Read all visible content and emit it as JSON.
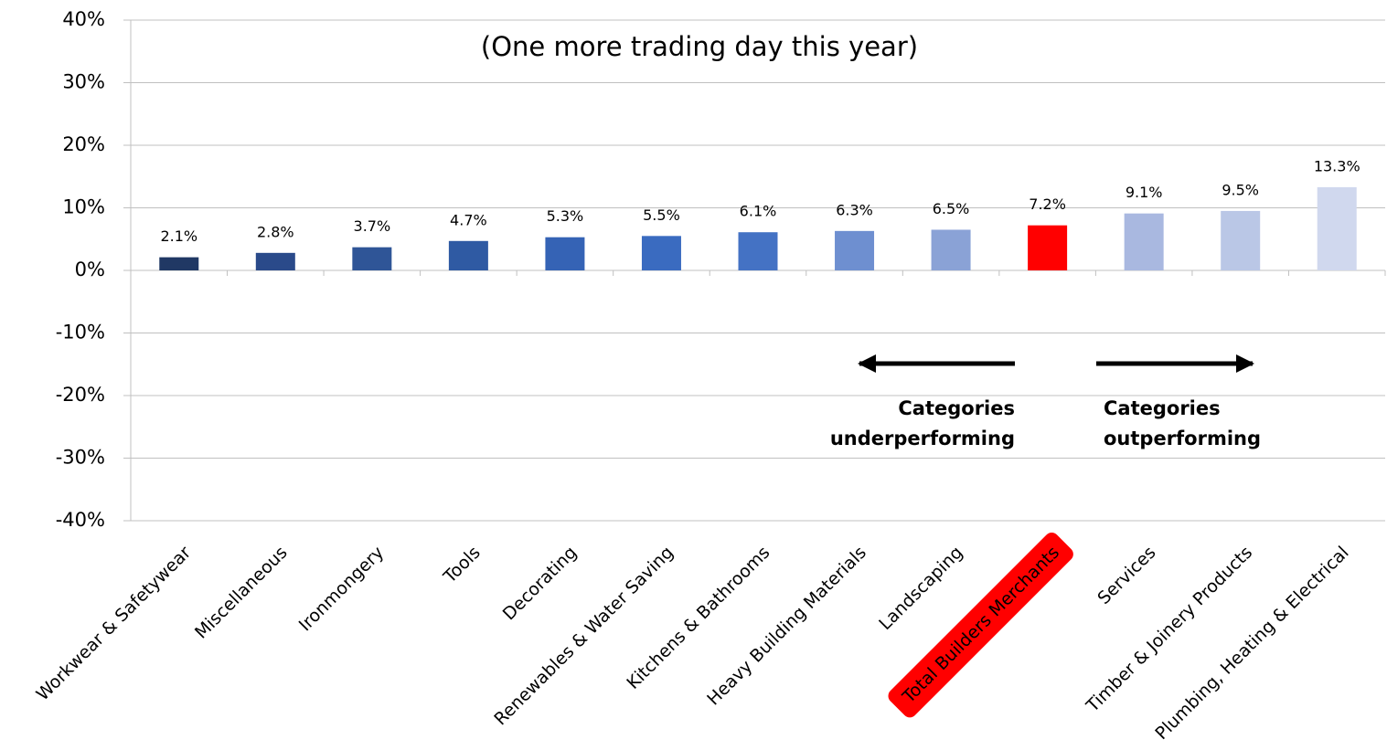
{
  "chart_data": {
    "type": "bar",
    "title": "(One more trading day this year)",
    "categories": [
      "Workwear & Safetywear",
      "Miscellaneous",
      "Ironmongery",
      "Tools",
      "Decorating",
      "Renewables & Water Saving",
      "Kitchens & Bathrooms",
      "Heavy Building Materials",
      "Landscaping",
      "Total Builders Merchants",
      "Services",
      "Timber & Joinery Products",
      "Plumbing, Heating & Electrical"
    ],
    "values": [
      2.1,
      2.8,
      3.7,
      4.7,
      5.3,
      5.5,
      6.1,
      6.3,
      6.5,
      7.2,
      9.1,
      9.5,
      13.3
    ],
    "value_labels": [
      "2.1%",
      "2.8%",
      "3.7%",
      "4.7%",
      "5.3%",
      "5.5%",
      "6.1%",
      "6.3%",
      "6.5%",
      "7.2%",
      "9.1%",
      "9.5%",
      "13.3%"
    ],
    "colors": [
      "#203864",
      "#2a4a8a",
      "#2f5597",
      "#2f5aa3",
      "#3563b5",
      "#3a6bc0",
      "#4472c4",
      "#6e8fd0",
      "#8aa2d6",
      "#ff0000",
      "#a9b8e0",
      "#bac7e6",
      "#d0d8ee"
    ],
    "highlight_index": 9,
    "highlight_color": "#ff0000",
    "ylim": [
      -40,
      40
    ],
    "yticks": [
      {
        "value": -40,
        "label": "-40%"
      },
      {
        "value": -30,
        "label": "-30%"
      },
      {
        "value": -20,
        "label": "-20%"
      },
      {
        "value": -10,
        "label": "-10%"
      },
      {
        "value": 0,
        "label": "0%"
      },
      {
        "value": 10,
        "label": "10%"
      },
      {
        "value": 20,
        "label": "20%"
      },
      {
        "value": 30,
        "label": "30%"
      },
      {
        "value": 40,
        "label": "40%"
      }
    ],
    "grid": true,
    "annotations": [
      [
        "Categories",
        "underperforming"
      ],
      [
        "Categories",
        "outperforming"
      ]
    ]
  }
}
